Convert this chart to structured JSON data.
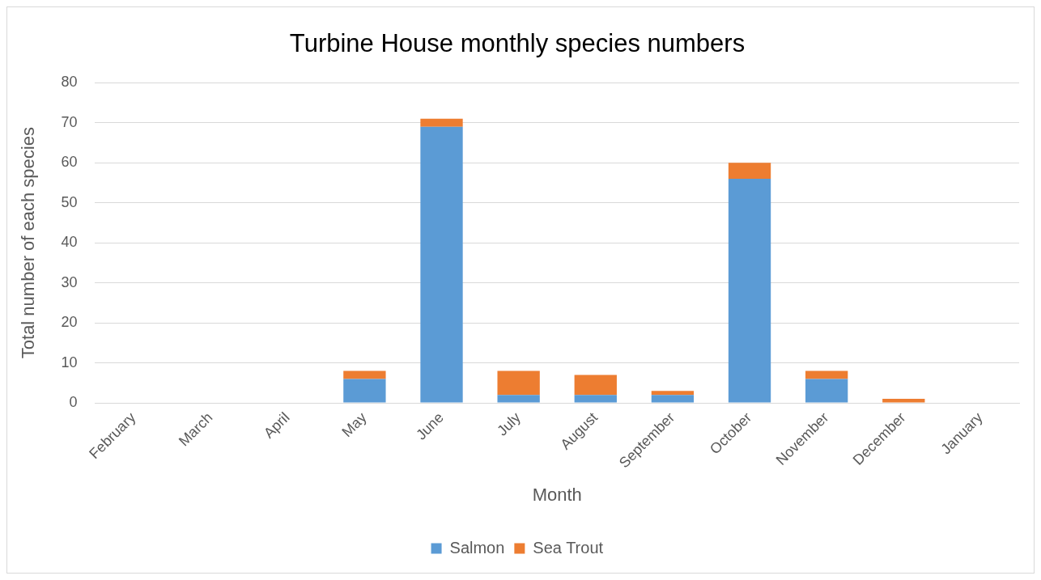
{
  "chart_data": {
    "type": "bar",
    "title": "Turbine House monthly species numbers",
    "xlabel": "Month",
    "ylabel": "Total number of each species",
    "categories": [
      "February",
      "March",
      "April",
      "May",
      "June",
      "July",
      "August",
      "September",
      "October",
      "November",
      "December",
      "January"
    ],
    "series": [
      {
        "name": "Salmon",
        "color": "#5b9bd5",
        "values": [
          0,
          0,
          0,
          6,
          69,
          2,
          2,
          2,
          56,
          6,
          0,
          0
        ]
      },
      {
        "name": "Sea Trout",
        "color": "#ed7d31",
        "values": [
          0,
          0,
          0,
          2,
          2,
          6,
          5,
          1,
          4,
          2,
          1,
          0
        ]
      }
    ],
    "stacked": true,
    "ylim": [
      0,
      80
    ],
    "yticks": [
      0,
      10,
      20,
      30,
      40,
      50,
      60,
      70,
      80
    ],
    "grid": "y",
    "legend": "bottom"
  }
}
